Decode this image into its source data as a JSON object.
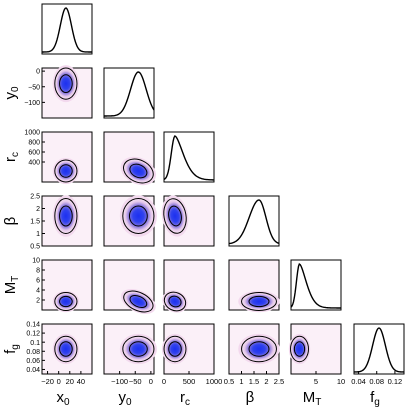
{
  "chart_data": {
    "type": "corner",
    "parameters": [
      {
        "name": "x",
        "sub": "0",
        "range": [
          -30,
          60
        ],
        "ticks": [
          -20,
          0,
          20,
          40
        ],
        "tick_labels": [
          "−20",
          "0",
          "20",
          "40"
        ],
        "peak": 13,
        "sigma": 10
      },
      {
        "name": "y",
        "sub": "0",
        "range": [
          -150,
          10
        ],
        "ticks": [
          -100,
          -50,
          0
        ],
        "tick_labels": [
          "−100",
          "−50",
          "0"
        ],
        "peak": -40,
        "sigma": 25
      },
      {
        "name": "r",
        "sub": "c",
        "range": [
          0,
          1000
        ],
        "ticks": [
          0,
          500,
          1000
        ],
        "tick_labels": [
          "0",
          "500",
          "1000"
        ],
        "peak": 220,
        "sigma": 110
      },
      {
        "name": "β",
        "sub": "",
        "range": [
          0.5,
          2.5
        ],
        "ticks": [
          0.5,
          1,
          1.5,
          2,
          2.5
        ],
        "tick_labels": [
          "0.5",
          "1",
          "1.5",
          "2",
          "2.5"
        ],
        "peak": 1.7,
        "sigma": 0.35
      },
      {
        "name": "M",
        "sub": "T",
        "range": [
          0,
          10
        ],
        "ticks": [
          5,
          10
        ],
        "tick_labels": [
          "5",
          "10"
        ],
        "peak": 1.7,
        "sigma": 0.9
      },
      {
        "name": "f",
        "sub": "g",
        "range": [
          0.03,
          0.14
        ],
        "ticks": [
          0.04,
          0.08,
          0.12
        ],
        "tick_labels": [
          "0.04",
          "0.08",
          "0.12"
        ],
        "peak": 0.085,
        "sigma": 0.014
      }
    ],
    "row_ticks": [
      null,
      {
        "ticks": [
          0,
          -50,
          -100
        ],
        "tick_labels": [
          "0",
          "−50",
          "−100"
        ]
      },
      {
        "ticks": [
          1000,
          800,
          600,
          400
        ],
        "tick_labels": [
          "1000",
          "800",
          "600",
          "400"
        ]
      },
      {
        "ticks": [
          2.5,
          2,
          1.5,
          1,
          0.5
        ],
        "tick_labels": [
          "2.5",
          "2",
          "1.5",
          "1",
          "0.5"
        ]
      },
      {
        "ticks": [
          10,
          8,
          6,
          4,
          2
        ],
        "tick_labels": [
          "10",
          "8",
          "6",
          "4",
          "2"
        ]
      },
      {
        "ticks": [
          0.14,
          0.12,
          0.1,
          0.08,
          0.06,
          0.04
        ],
        "tick_labels": [
          "0.14",
          "0.12",
          "0.1",
          "0.08",
          "0.06",
          "0.04"
        ]
      }
    ],
    "contour_levels": [
      "68%",
      "95%"
    ],
    "colors": {
      "core": "#1c2ff0",
      "mid": "#7a6ae0",
      "outer": "#f4dcef",
      "line": "#000000",
      "frame": "#000000"
    }
  }
}
